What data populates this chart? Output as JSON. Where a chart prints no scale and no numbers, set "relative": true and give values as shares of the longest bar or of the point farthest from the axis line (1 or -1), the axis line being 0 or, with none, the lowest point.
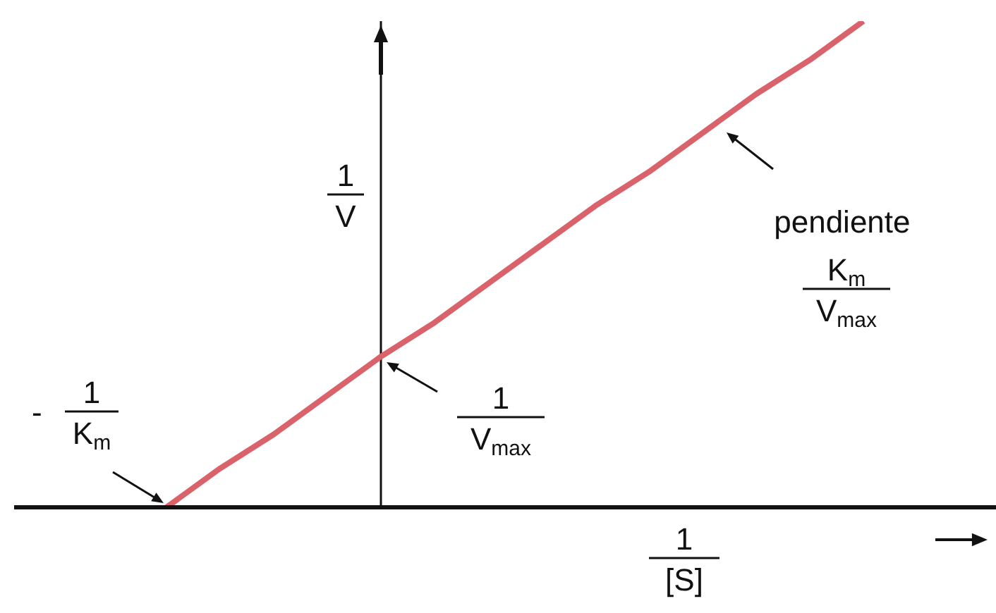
{
  "chart_data": {
    "type": "line",
    "relative": true,
    "color": "#d9626b",
    "categories": [
      null,
      null,
      null,
      null,
      null,
      null,
      null,
      null,
      null,
      null,
      null,
      null,
      null,
      null
    ],
    "values": [
      0,
      0.08,
      0.15,
      0.23,
      0.31,
      0.38,
      0.46,
      0.54,
      0.62,
      0.69,
      0.77,
      0.85,
      0.92,
      1
    ],
    "xlabel": "1/[S]",
    "ylabel": "1/V",
    "annotations": [
      "- 1/K$_{m}$",
      "1/V$_{max}$",
      "pendiente\nK$_{m}$/V$_{max}$"
    ]
  }
}
